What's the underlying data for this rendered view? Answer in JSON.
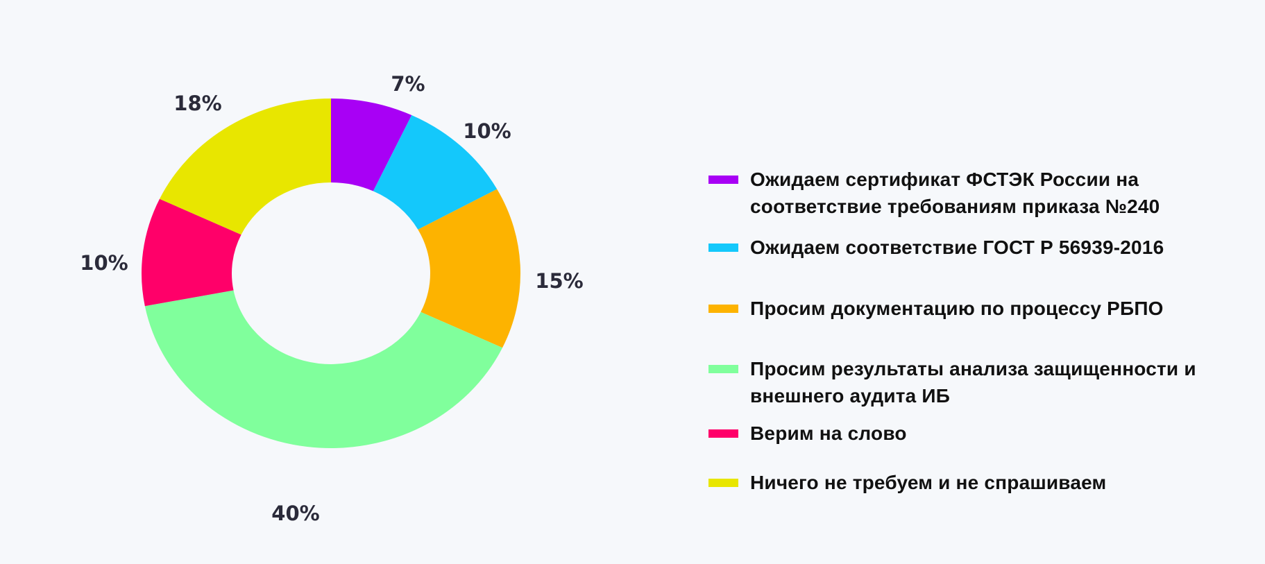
{
  "chart_data": {
    "type": "pie",
    "subtype": "donut",
    "title": "",
    "start": "top",
    "direction": "clockwise",
    "legend_position": "right",
    "categories": [
      "Ожидаем сертификат ФСТЭК России на соответствие требованиям приказа №240",
      "Ожидаем соответствие ГОСТ Р 56939-2016",
      "Просим документацию по процессу РБПО",
      "Просим результаты анализа защищенности и внешнего аудита ИБ",
      "Верим на слово",
      "Ничего не требуем и не спрашиваем"
    ],
    "values": [
      7,
      10,
      15,
      40,
      10,
      18
    ],
    "labels": [
      "7%",
      "10%",
      "15%",
      "40%",
      "10%",
      "18%"
    ],
    "colors": [
      "#a800f5",
      "#14c8fb",
      "#fdb300",
      "#80ff9c",
      "#ff0069",
      "#e8e600"
    ]
  }
}
